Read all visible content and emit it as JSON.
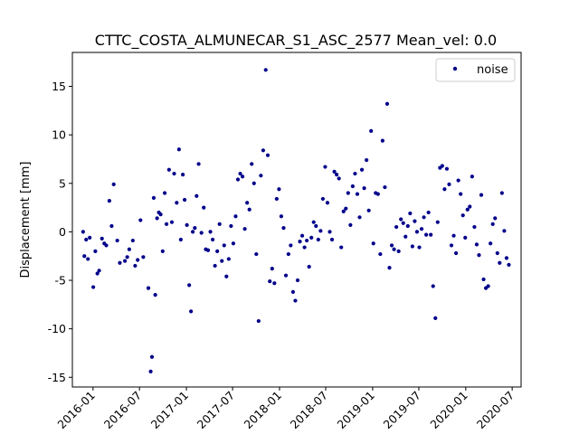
{
  "chart_data": {
    "type": "scatter",
    "title": "CTTC_COSTA_ALMUNECAR_S1_ASC_2577    Mean_vel: 0.0",
    "xlabel": "",
    "ylabel": "Displacement [mm]",
    "x_axis_type": "date",
    "xlim": [
      "2015-10-12",
      "2020-08-05"
    ],
    "ylim": [
      -16,
      18.5
    ],
    "xticks": [
      "2016-01",
      "2016-07",
      "2017-01",
      "2017-07",
      "2018-01",
      "2018-07",
      "2019-01",
      "2019-07",
      "2020-01",
      "2020-07"
    ],
    "yticks": [
      -15,
      -10,
      -5,
      0,
      5,
      10,
      15
    ],
    "grid": false,
    "legend": {
      "position": "top-right",
      "entries": [
        "noise"
      ]
    },
    "series": [
      {
        "name": "noise",
        "color": "#00008b",
        "marker": "point",
        "points": [
          [
            "2015-11-23",
            0.0
          ],
          [
            "2015-11-28",
            -2.5
          ],
          [
            "2015-12-05",
            -0.8
          ],
          [
            "2015-12-12",
            -2.8
          ],
          [
            "2015-12-19",
            -0.6
          ],
          [
            "2016-01-02",
            -5.7
          ],
          [
            "2016-01-10",
            -2.0
          ],
          [
            "2016-01-18",
            -4.3
          ],
          [
            "2016-01-25",
            -4.0
          ],
          [
            "2016-02-05",
            -0.7
          ],
          [
            "2016-02-14",
            -1.2
          ],
          [
            "2016-02-22",
            -1.4
          ],
          [
            "2016-03-05",
            3.2
          ],
          [
            "2016-03-14",
            0.6
          ],
          [
            "2016-03-22",
            4.9
          ],
          [
            "2016-04-05",
            -0.9
          ],
          [
            "2016-04-15",
            -3.2
          ],
          [
            "2016-05-05",
            -3.0
          ],
          [
            "2016-05-14",
            -2.6
          ],
          [
            "2016-05-22",
            -1.8
          ],
          [
            "2016-06-05",
            -0.9
          ],
          [
            "2016-06-14",
            -3.5
          ],
          [
            "2016-06-24",
            -2.9
          ],
          [
            "2016-07-05",
            1.2
          ],
          [
            "2016-07-16",
            -2.6
          ],
          [
            "2016-08-05",
            -5.8
          ],
          [
            "2016-08-14",
            -14.4
          ],
          [
            "2016-08-19",
            -12.9
          ],
          [
            "2016-08-26",
            3.5
          ],
          [
            "2016-09-01",
            -6.5
          ],
          [
            "2016-09-08",
            1.4
          ],
          [
            "2016-09-15",
            2.0
          ],
          [
            "2016-09-22",
            1.8
          ],
          [
            "2016-09-30",
            -2.0
          ],
          [
            "2016-10-08",
            4.0
          ],
          [
            "2016-10-15",
            0.8
          ],
          [
            "2016-10-25",
            6.4
          ],
          [
            "2016-11-05",
            1.0
          ],
          [
            "2016-11-14",
            6.0
          ],
          [
            "2016-11-24",
            3.0
          ],
          [
            "2016-12-03",
            8.5
          ],
          [
            "2016-12-10",
            -0.8
          ],
          [
            "2016-12-18",
            5.9
          ],
          [
            "2016-12-25",
            3.3
          ],
          [
            "2017-01-03",
            0.7
          ],
          [
            "2017-01-12",
            -5.5
          ],
          [
            "2017-01-19",
            -8.2
          ],
          [
            "2017-01-26",
            0.0
          ],
          [
            "2017-02-03",
            0.4
          ],
          [
            "2017-02-10",
            3.7
          ],
          [
            "2017-02-18",
            7.0
          ],
          [
            "2017-03-01",
            -0.1
          ],
          [
            "2017-03-10",
            2.5
          ],
          [
            "2017-03-18",
            -1.8
          ],
          [
            "2017-03-27",
            -1.9
          ],
          [
            "2017-04-05",
            0.0
          ],
          [
            "2017-04-14",
            -0.8
          ],
          [
            "2017-04-23",
            -3.5
          ],
          [
            "2017-05-02",
            -2.0
          ],
          [
            "2017-05-11",
            0.8
          ],
          [
            "2017-05-20",
            -3.0
          ],
          [
            "2017-05-29",
            -1.4
          ],
          [
            "2017-06-07",
            -4.6
          ],
          [
            "2017-06-16",
            -2.8
          ],
          [
            "2017-06-25",
            0.6
          ],
          [
            "2017-07-04",
            -1.2
          ],
          [
            "2017-07-13",
            1.6
          ],
          [
            "2017-07-22",
            5.4
          ],
          [
            "2017-07-31",
            6.0
          ],
          [
            "2017-08-09",
            5.7
          ],
          [
            "2017-08-18",
            0.3
          ],
          [
            "2017-08-27",
            3.0
          ],
          [
            "2017-09-05",
            2.3
          ],
          [
            "2017-09-14",
            7.0
          ],
          [
            "2017-09-23",
            5.0
          ],
          [
            "2017-10-02",
            -2.3
          ],
          [
            "2017-10-11",
            -9.2
          ],
          [
            "2017-10-20",
            5.8
          ],
          [
            "2017-10-29",
            8.4
          ],
          [
            "2017-11-08",
            16.7
          ],
          [
            "2017-11-16",
            7.9
          ],
          [
            "2017-11-24",
            -5.1
          ],
          [
            "2017-12-03",
            -3.8
          ],
          [
            "2017-12-12",
            -5.3
          ],
          [
            "2017-12-21",
            3.4
          ],
          [
            "2017-12-30",
            4.4
          ],
          [
            "2018-01-08",
            1.6
          ],
          [
            "2018-01-17",
            0.4
          ],
          [
            "2018-01-26",
            -4.5
          ],
          [
            "2018-02-05",
            -2.3
          ],
          [
            "2018-02-14",
            -1.4
          ],
          [
            "2018-02-23",
            -6.2
          ],
          [
            "2018-03-04",
            -7.1
          ],
          [
            "2018-03-13",
            -5.0
          ],
          [
            "2018-03-22",
            -1.0
          ],
          [
            "2018-03-31",
            -0.4
          ],
          [
            "2018-04-09",
            -1.6
          ],
          [
            "2018-04-18",
            -0.9
          ],
          [
            "2018-04-27",
            -3.6
          ],
          [
            "2018-05-06",
            -0.6
          ],
          [
            "2018-05-15",
            1.0
          ],
          [
            "2018-05-24",
            0.6
          ],
          [
            "2018-06-02",
            -0.8
          ],
          [
            "2018-06-11",
            0.1
          ],
          [
            "2018-06-20",
            3.4
          ],
          [
            "2018-06-29",
            6.7
          ],
          [
            "2018-07-08",
            3.0
          ],
          [
            "2018-07-17",
            0.0
          ],
          [
            "2018-07-26",
            -0.8
          ],
          [
            "2018-08-04",
            6.2
          ],
          [
            "2018-08-13",
            5.9
          ],
          [
            "2018-08-22",
            5.5
          ],
          [
            "2018-08-31",
            -1.6
          ],
          [
            "2018-09-09",
            2.1
          ],
          [
            "2018-09-18",
            2.4
          ],
          [
            "2018-09-27",
            4.0
          ],
          [
            "2018-10-06",
            0.7
          ],
          [
            "2018-10-15",
            4.7
          ],
          [
            "2018-10-24",
            6.0
          ],
          [
            "2018-11-02",
            3.9
          ],
          [
            "2018-11-11",
            1.5
          ],
          [
            "2018-11-20",
            6.4
          ],
          [
            "2018-11-29",
            4.5
          ],
          [
            "2018-12-08",
            7.4
          ],
          [
            "2018-12-17",
            2.2
          ],
          [
            "2018-12-26",
            10.4
          ],
          [
            "2019-01-04",
            -1.2
          ],
          [
            "2019-01-13",
            4.0
          ],
          [
            "2019-01-22",
            3.9
          ],
          [
            "2019-01-31",
            -2.3
          ],
          [
            "2019-02-09",
            9.4
          ],
          [
            "2019-02-18",
            4.6
          ],
          [
            "2019-02-27",
            13.2
          ],
          [
            "2019-03-08",
            -3.7
          ],
          [
            "2019-03-17",
            -1.4
          ],
          [
            "2019-03-26",
            -1.8
          ],
          [
            "2019-04-04",
            0.5
          ],
          [
            "2019-04-13",
            -2.0
          ],
          [
            "2019-04-22",
            1.3
          ],
          [
            "2019-05-01",
            0.9
          ],
          [
            "2019-05-10",
            -0.5
          ],
          [
            "2019-05-19",
            0.6
          ],
          [
            "2019-05-28",
            1.9
          ],
          [
            "2019-06-06",
            -1.5
          ],
          [
            "2019-06-15",
            1.1
          ],
          [
            "2019-06-24",
            0.0
          ],
          [
            "2019-07-03",
            -1.6
          ],
          [
            "2019-07-12",
            0.3
          ],
          [
            "2019-07-21",
            1.5
          ],
          [
            "2019-07-30",
            -0.3
          ],
          [
            "2019-08-08",
            2.0
          ],
          [
            "2019-08-17",
            -0.3
          ],
          [
            "2019-08-26",
            -5.6
          ],
          [
            "2019-09-04",
            -8.9
          ],
          [
            "2019-09-13",
            1.0
          ],
          [
            "2019-09-22",
            6.6
          ],
          [
            "2019-10-01",
            6.8
          ],
          [
            "2019-10-10",
            4.4
          ],
          [
            "2019-10-19",
            6.5
          ],
          [
            "2019-10-28",
            4.9
          ],
          [
            "2019-11-06",
            -1.4
          ],
          [
            "2019-11-15",
            -0.4
          ],
          [
            "2019-11-24",
            -2.2
          ],
          [
            "2019-12-03",
            5.3
          ],
          [
            "2019-12-12",
            3.9
          ],
          [
            "2019-12-21",
            1.7
          ],
          [
            "2019-12-30",
            -0.6
          ],
          [
            "2020-01-08",
            2.3
          ],
          [
            "2020-01-17",
            2.6
          ],
          [
            "2020-01-26",
            5.7
          ],
          [
            "2020-02-04",
            0.5
          ],
          [
            "2020-02-13",
            -1.3
          ],
          [
            "2020-02-22",
            -2.4
          ],
          [
            "2020-03-02",
            3.8
          ],
          [
            "2020-03-11",
            -4.9
          ],
          [
            "2020-03-20",
            -5.8
          ],
          [
            "2020-03-29",
            -5.6
          ],
          [
            "2020-04-07",
            -1.2
          ],
          [
            "2020-04-16",
            0.8
          ],
          [
            "2020-04-25",
            1.4
          ],
          [
            "2020-05-04",
            -2.2
          ],
          [
            "2020-05-13",
            -3.2
          ],
          [
            "2020-05-22",
            4.0
          ],
          [
            "2020-05-31",
            0.1
          ],
          [
            "2020-06-09",
            -2.7
          ],
          [
            "2020-06-18",
            -3.4
          ]
        ]
      }
    ]
  }
}
